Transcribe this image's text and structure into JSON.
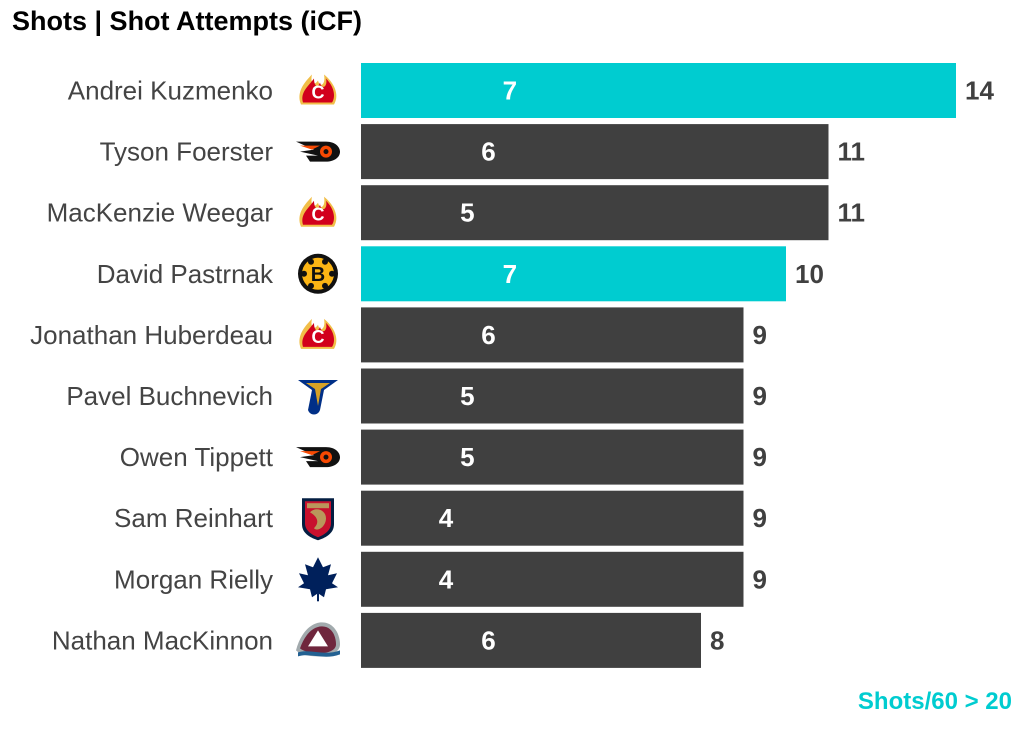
{
  "title": "Shots | Shot Attempts (iCF)",
  "footnote": "Shots/60 > 20",
  "colors": {
    "highlight": "#00ccd0",
    "default": "#404040",
    "label": "#444444",
    "value": "#404040",
    "inner_text": "#ffffff"
  },
  "chart_data": {
    "type": "bar",
    "orientation": "horizontal",
    "title": "Shots | Shot Attempts (iCF)",
    "xlim": [
      0,
      14
    ],
    "grid": false,
    "series": [
      {
        "name": "Shots",
        "values": [
          7,
          6,
          5,
          7,
          6,
          5,
          5,
          4,
          4,
          6
        ]
      },
      {
        "name": "Shot Attempts (iCF)",
        "values": [
          14,
          11,
          11,
          10,
          9,
          9,
          9,
          9,
          9,
          8
        ]
      }
    ],
    "players": [
      {
        "name": "Andrei Kuzmenko",
        "team_icon": "calgary-flames-logo-icon",
        "highlight": true
      },
      {
        "name": "Tyson Foerster",
        "team_icon": "philadelphia-flyers-logo-icon",
        "highlight": false
      },
      {
        "name": "MacKenzie Weegar",
        "team_icon": "calgary-flames-logo-icon",
        "highlight": false
      },
      {
        "name": "David Pastrnak",
        "team_icon": "boston-bruins-logo-icon",
        "highlight": true
      },
      {
        "name": "Jonathan Huberdeau",
        "team_icon": "calgary-flames-logo-icon",
        "highlight": false
      },
      {
        "name": "Pavel Buchnevich",
        "team_icon": "st-louis-blues-logo-icon",
        "highlight": false
      },
      {
        "name": "Owen Tippett",
        "team_icon": "philadelphia-flyers-logo-icon",
        "highlight": false
      },
      {
        "name": "Sam Reinhart",
        "team_icon": "florida-panthers-logo-icon",
        "highlight": false
      },
      {
        "name": "Morgan Rielly",
        "team_icon": "toronto-maple-leafs-logo-icon",
        "highlight": false
      },
      {
        "name": "Nathan MacKinnon",
        "team_icon": "colorado-avalanche-logo-icon",
        "highlight": false
      }
    ]
  }
}
